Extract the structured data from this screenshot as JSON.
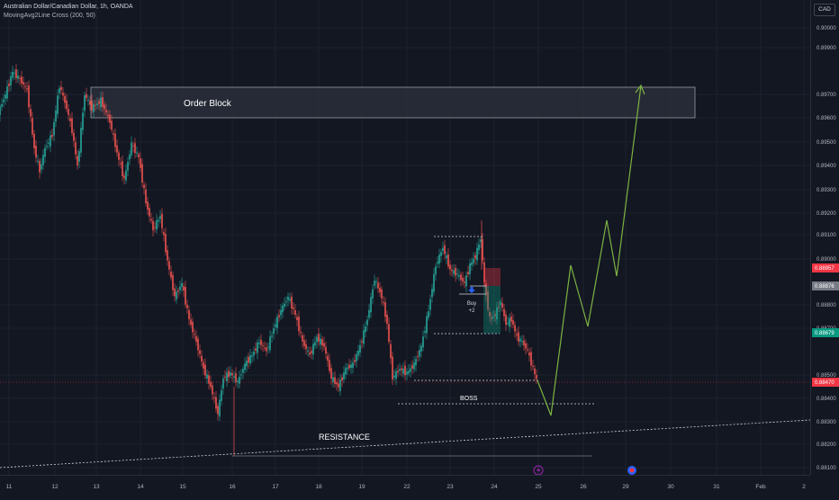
{
  "header": {
    "symbol_title": "Australian Dollar/Canadian Dollar, 1h, OANDA",
    "indicator": "MovingAvg2Line Cross (200, 50)",
    "currency": "CAD"
  },
  "price_axis": {
    "labels": [
      "0.90000",
      "0.89900",
      "0.89700",
      "0.89600",
      "0.89500",
      "0.89400",
      "0.89300",
      "0.89200",
      "0.89100",
      "0.89000",
      "0.88800",
      "0.88700",
      "0.88500",
      "0.88400",
      "0.88300",
      "0.88200",
      "0.88100"
    ]
  },
  "price_badges": [
    {
      "name": "price-badge-red",
      "value": "0.88957",
      "color": "#f23645"
    },
    {
      "name": "price-badge-gray",
      "value": "0.88876",
      "color": "#787b86"
    },
    {
      "name": "price-badge-green",
      "value": "0.88679",
      "color": "#089981"
    },
    {
      "name": "price-badge-current",
      "value": "0.88470",
      "color": "#f23645"
    }
  ],
  "time_axis": {
    "labels": [
      "11",
      "12",
      "13",
      "14",
      "15",
      "16",
      "17",
      "18",
      "19",
      "22",
      "23",
      "24",
      "25",
      "26",
      "29",
      "30",
      "31",
      "Feb",
      "2",
      "5",
      "6"
    ]
  },
  "annotations": {
    "order_block": "Order Block",
    "resistance": "RESISTANCE",
    "boss": "BOSS",
    "buy_label": "Buy",
    "buy_qty": "+2"
  },
  "colors": {
    "background": "#131722",
    "up_candle": "#26a69a",
    "down_candle": "#ef5350",
    "projection": "#7cb342",
    "order_block_fill": "#2a2e39"
  },
  "icons": [
    "lightning-event-icon",
    "flag-event-icon"
  ]
}
